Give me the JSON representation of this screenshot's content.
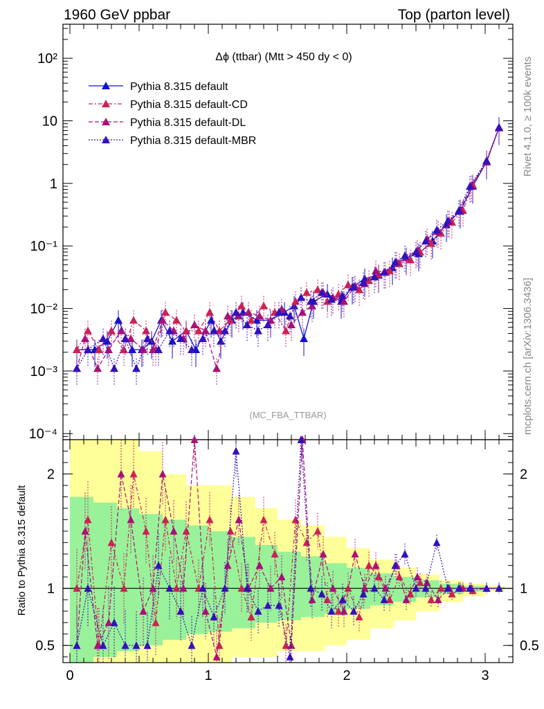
{
  "header": {
    "left_title": "1960 GeV ppbar",
    "right_title": "Top (parton level)"
  },
  "side_labels": {
    "rivet": "Rivet 4.1.0, ≥ 100k events",
    "mcplots": "mcplots.cern.ch [arXiv:1306.3436]"
  },
  "chart_data": {
    "type": "line",
    "title": "Δϕ (ttbar) (Mtt > 450 dy < 0)",
    "watermark": "(MC_FBA_TTBAR)",
    "xlabel": "",
    "ylabel": "",
    "xlim": [
      -0.05,
      3.2
    ],
    "ylim": [
      8e-05,
      350
    ],
    "yscale": "log",
    "x_ticks": [
      "0",
      "1",
      "2",
      "3"
    ],
    "y_ticks": [
      "10⁻⁴",
      "10⁻³",
      "10⁻²",
      "10⁻¹",
      "1",
      "10",
      "10²"
    ],
    "ratio_panel": {
      "ylabel": "Ratio to Pythia 8.315 default",
      "ylim": [
        0.35,
        2.3
      ],
      "y_ticks": [
        "0.5",
        "1",
        "2"
      ],
      "reference_line": 1.0
    },
    "legend_position": "top-left",
    "series": [
      {
        "name": "Pythia 8.315 default",
        "color": "#1111cc",
        "style": "solid",
        "x": [
          0.05,
          0.18,
          0.27,
          0.35,
          0.45,
          0.52,
          0.59,
          0.66,
          0.74,
          0.84,
          0.91,
          1.02,
          1.09,
          1.17,
          1.25,
          1.35,
          1.45,
          1.55,
          1.62,
          1.69,
          1.76,
          1.86,
          1.96,
          2.04,
          2.13,
          2.23,
          2.33,
          2.43,
          2.52,
          2.62,
          2.72,
          2.82,
          2.91,
          3.01,
          3.1
        ],
        "y": [
          0.0022,
          0.0022,
          0.003,
          0.0065,
          0.0022,
          0.0022,
          0.003,
          0.0065,
          0.003,
          0.0044,
          0.0022,
          0.0065,
          0.003,
          0.0065,
          0.0087,
          0.0065,
          0.0065,
          0.0087,
          0.011,
          0.0033,
          0.013,
          0.017,
          0.013,
          0.022,
          0.03,
          0.034,
          0.045,
          0.065,
          0.075,
          0.12,
          0.22,
          0.36,
          0.9,
          2.2,
          7.8
        ]
      },
      {
        "name": "Pythia 8.315 default-CD",
        "color": "#cc2255",
        "style": "dashdot",
        "x": [
          0.05,
          0.13,
          0.21,
          0.3,
          0.39,
          0.46,
          0.55,
          0.62,
          0.69,
          0.77,
          0.84,
          0.93,
          1.01,
          1.08,
          1.16,
          1.24,
          1.31,
          1.4,
          1.48,
          1.56,
          1.63,
          1.71,
          1.79,
          1.86,
          1.94,
          2.01,
          2.09,
          2.16,
          2.23,
          2.31,
          2.38,
          2.46,
          2.53,
          2.61,
          2.68,
          2.76,
          2.84,
          2.91,
          3.01,
          3.1
        ],
        "y": [
          0.0022,
          0.0044,
          0.0022,
          0.0044,
          0.0022,
          0.0065,
          0.0044,
          0.0022,
          0.0087,
          0.0065,
          0.0044,
          0.0044,
          0.0087,
          0.0044,
          0.0065,
          0.011,
          0.0065,
          0.011,
          0.0087,
          0.0044,
          0.013,
          0.018,
          0.02,
          0.013,
          0.017,
          0.024,
          0.02,
          0.028,
          0.035,
          0.04,
          0.052,
          0.06,
          0.08,
          0.11,
          0.16,
          0.24,
          0.37,
          0.95,
          2.3,
          7.8
        ]
      },
      {
        "name": "Pythia 8.315 default-DL",
        "color": "#aa1177",
        "style": "dashed",
        "x": [
          0.05,
          0.11,
          0.2,
          0.28,
          0.37,
          0.44,
          0.53,
          0.6,
          0.67,
          0.75,
          0.82,
          0.9,
          0.98,
          1.06,
          1.14,
          1.22,
          1.29,
          1.37,
          1.45,
          1.53,
          1.6,
          1.68,
          1.75,
          1.83,
          1.9,
          1.98,
          2.06,
          2.13,
          2.21,
          2.28,
          2.36,
          2.43,
          2.51,
          2.58,
          2.66,
          2.74,
          2.82,
          2.9,
          3.01,
          3.1
        ],
        "y": [
          0.0011,
          0.0033,
          0.0011,
          0.0022,
          0.0044,
          0.0033,
          0.0022,
          0.0022,
          0.0065,
          0.0044,
          0.0033,
          0.0055,
          0.0044,
          0.0011,
          0.0076,
          0.0076,
          0.0087,
          0.0076,
          0.0065,
          0.0098,
          0.0055,
          0.0087,
          0.011,
          0.018,
          0.015,
          0.013,
          0.023,
          0.025,
          0.04,
          0.038,
          0.055,
          0.065,
          0.085,
          0.13,
          0.17,
          0.25,
          0.38,
          0.92,
          2.2,
          7.7
        ]
      },
      {
        "name": "Pythia 8.315 default-MBR",
        "color": "#3311bb",
        "style": "dotted",
        "x": [
          0.05,
          0.13,
          0.24,
          0.32,
          0.4,
          0.48,
          0.56,
          0.64,
          0.72,
          0.8,
          0.88,
          0.96,
          1.04,
          1.12,
          1.2,
          1.28,
          1.36,
          1.43,
          1.51,
          1.59,
          1.67,
          1.74,
          1.82,
          1.89,
          1.97,
          2.05,
          2.12,
          2.2,
          2.27,
          2.35,
          2.42,
          2.5,
          2.57,
          2.65,
          2.73,
          2.81,
          2.89,
          3.01,
          3.1
        ],
        "y": [
          0.0011,
          0.0022,
          0.0033,
          0.0011,
          0.0033,
          0.0011,
          0.0033,
          0.0022,
          0.0044,
          0.0033,
          0.0022,
          0.0033,
          0.0044,
          0.0044,
          0.0087,
          0.0055,
          0.0044,
          0.0055,
          0.0087,
          0.0076,
          0.015,
          0.013,
          0.018,
          0.014,
          0.016,
          0.022,
          0.026,
          0.032,
          0.038,
          0.055,
          0.07,
          0.08,
          0.12,
          0.18,
          0.25,
          0.37,
          0.9,
          2.3,
          7.9
        ]
      }
    ],
    "ratio_series": [
      {
        "name": "Pythia 8.315 default-CD",
        "color": "#cc2255",
        "style": "dashdot",
        "x": [
          0.05,
          0.13,
          0.21,
          0.3,
          0.39,
          0.46,
          0.55,
          0.62,
          0.69,
          0.77,
          0.84,
          0.93,
          1.01,
          1.08,
          1.16,
          1.24,
          1.31,
          1.4,
          1.48,
          1.56,
          1.63,
          1.71,
          1.79,
          1.86,
          1.94,
          2.01,
          2.09,
          2.16,
          2.23,
          2.31,
          2.38,
          2.46,
          2.53,
          2.61,
          2.68,
          2.76,
          2.84,
          2.91,
          3.01,
          3.1
        ],
        "y": [
          1.0,
          1.6,
          0.5,
          1.4,
          1.0,
          2.0,
          1.5,
          0.7,
          1.6,
          1.0,
          1.5,
          1.0,
          1.6,
          0.5,
          1.5,
          1.0,
          0.75,
          1.6,
          1.3,
          0.5,
          1.6,
          1.4,
          1.5,
          0.9,
          0.8,
          1.0,
          0.75,
          1.2,
          1.1,
          0.9,
          1.1,
          0.95,
          1.05,
          0.9,
          1.0,
          0.95,
          1.0,
          0.98,
          1.0,
          1.0
        ]
      },
      {
        "name": "Pythia 8.315 default-DL",
        "color": "#aa1177",
        "style": "dashed",
        "x": [
          0.05,
          0.11,
          0.2,
          0.28,
          0.37,
          0.44,
          0.53,
          0.6,
          0.67,
          0.75,
          0.82,
          0.9,
          0.98,
          1.06,
          1.14,
          1.22,
          1.29,
          1.37,
          1.45,
          1.53,
          1.6,
          1.68,
          1.75,
          1.83,
          1.9,
          1.98,
          2.06,
          2.13,
          2.21,
          2.28,
          2.36,
          2.43,
          2.51,
          2.58,
          2.66,
          2.74,
          2.82,
          2.9,
          3.01,
          3.1
        ],
        "y": [
          0.5,
          1.5,
          0.5,
          0.7,
          2.0,
          1.6,
          0.8,
          1.0,
          2.0,
          1.5,
          1.0,
          2.3,
          0.8,
          0.4,
          1.2,
          1.6,
          1.0,
          1.2,
          1.0,
          1.1,
          0.5,
          2.3,
          0.9,
          1.3,
          1.0,
          0.8,
          1.3,
          1.0,
          1.2,
          1.0,
          1.2,
          0.9,
          1.1,
          1.05,
          0.9,
          1.0,
          1.0,
          1.0,
          1.0,
          1.0
        ]
      },
      {
        "name": "Pythia 8.315 default-MBR",
        "color": "#3311bb",
        "style": "dotted",
        "x": [
          0.05,
          0.13,
          0.24,
          0.32,
          0.4,
          0.48,
          0.56,
          0.64,
          0.72,
          0.8,
          0.88,
          0.96,
          1.04,
          1.12,
          1.2,
          1.28,
          1.36,
          1.43,
          1.51,
          1.59,
          1.67,
          1.74,
          1.82,
          1.89,
          1.97,
          2.05,
          2.12,
          2.2,
          2.27,
          2.35,
          2.42,
          2.5,
          2.57,
          2.65,
          2.73,
          2.81,
          2.89,
          3.01,
          3.1
        ],
        "y": [
          0.5,
          1.0,
          0.5,
          0.7,
          0.5,
          0.5,
          0.5,
          1.2,
          1.0,
          0.8,
          0.5,
          1.0,
          0.75,
          1.0,
          2.2,
          1.0,
          0.8,
          0.85,
          0.85,
          0.4,
          2.3,
          1.0,
          0.95,
          0.8,
          0.9,
          0.8,
          0.95,
          1.0,
          0.9,
          1.2,
          1.3,
          1.0,
          1.0,
          1.4,
          1.0,
          1.0,
          1.0,
          1.0,
          1.0
        ]
      }
    ],
    "uncertainty_bands": {
      "x_edges": [
        0.0,
        0.17,
        0.34,
        0.5,
        0.67,
        0.84,
        1.0,
        1.17,
        1.34,
        1.5,
        1.67,
        1.84,
        2.0,
        2.17,
        2.34,
        2.5,
        2.67,
        2.84,
        3.0,
        3.14
      ],
      "yellow_lo": [
        0.35,
        0.35,
        0.35,
        0.35,
        0.35,
        0.35,
        0.35,
        0.4,
        0.4,
        0.45,
        0.45,
        0.5,
        0.55,
        0.65,
        0.72,
        0.8,
        0.88,
        0.93,
        0.97
      ],
      "yellow_hi": [
        2.3,
        2.3,
        2.3,
        2.2,
        2.0,
        1.9,
        1.9,
        1.8,
        1.7,
        1.6,
        1.55,
        1.45,
        1.35,
        1.25,
        1.18,
        1.12,
        1.07,
        1.04,
        1.02
      ],
      "green_lo": [
        0.35,
        0.4,
        0.45,
        0.5,
        0.55,
        0.6,
        0.62,
        0.65,
        0.7,
        0.72,
        0.75,
        0.78,
        0.82,
        0.85,
        0.88,
        0.92,
        0.95,
        0.97,
        0.99
      ],
      "green_hi": [
        1.8,
        1.75,
        1.7,
        1.65,
        1.6,
        1.55,
        1.5,
        1.45,
        1.38,
        1.32,
        1.28,
        1.22,
        1.18,
        1.13,
        1.1,
        1.07,
        1.04,
        1.02,
        1.01
      ]
    }
  }
}
